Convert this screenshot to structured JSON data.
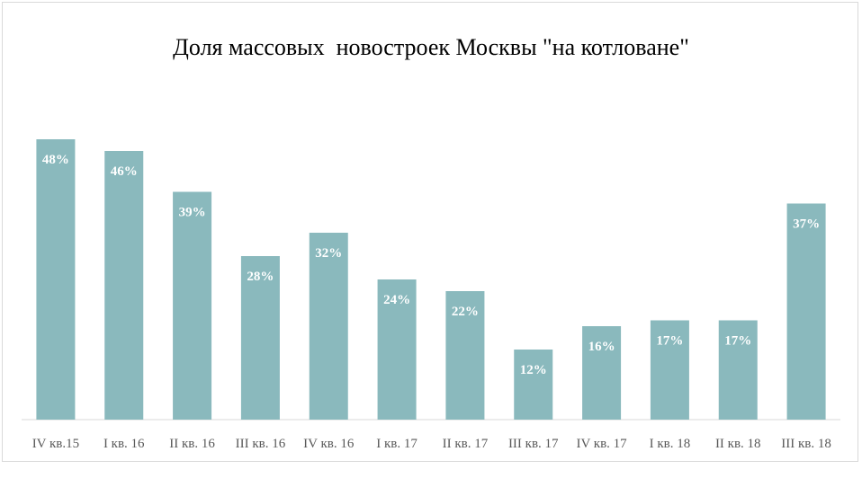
{
  "chart_data": {
    "type": "bar",
    "title": "Доля массовых  новостроек Москвы \"на котловане\"",
    "categories": [
      "IV кв.15",
      "I кв. 16",
      "II кв. 16",
      "III кв. 16",
      "IV кв. 16",
      "I кв. 17",
      "II кв. 17",
      "III кв. 17",
      "IV кв. 17",
      "I кв. 18",
      "II кв. 18",
      "III кв. 18"
    ],
    "values": [
      48,
      46,
      39,
      28,
      32,
      24,
      22,
      12,
      16,
      17,
      17,
      37
    ],
    "data_labels": [
      "48%",
      "46%",
      "39%",
      "28%",
      "32%",
      "24%",
      "22%",
      "12%",
      "16%",
      "17%",
      "17%",
      "37%"
    ],
    "unit": "%",
    "ylim": [
      0,
      60
    ],
    "grid": false,
    "legend": "none",
    "bar_color": "#8ab9bd",
    "label_color": "#ffffff",
    "axis_color": "#d9d9d9",
    "tick_color": "#595959"
  }
}
